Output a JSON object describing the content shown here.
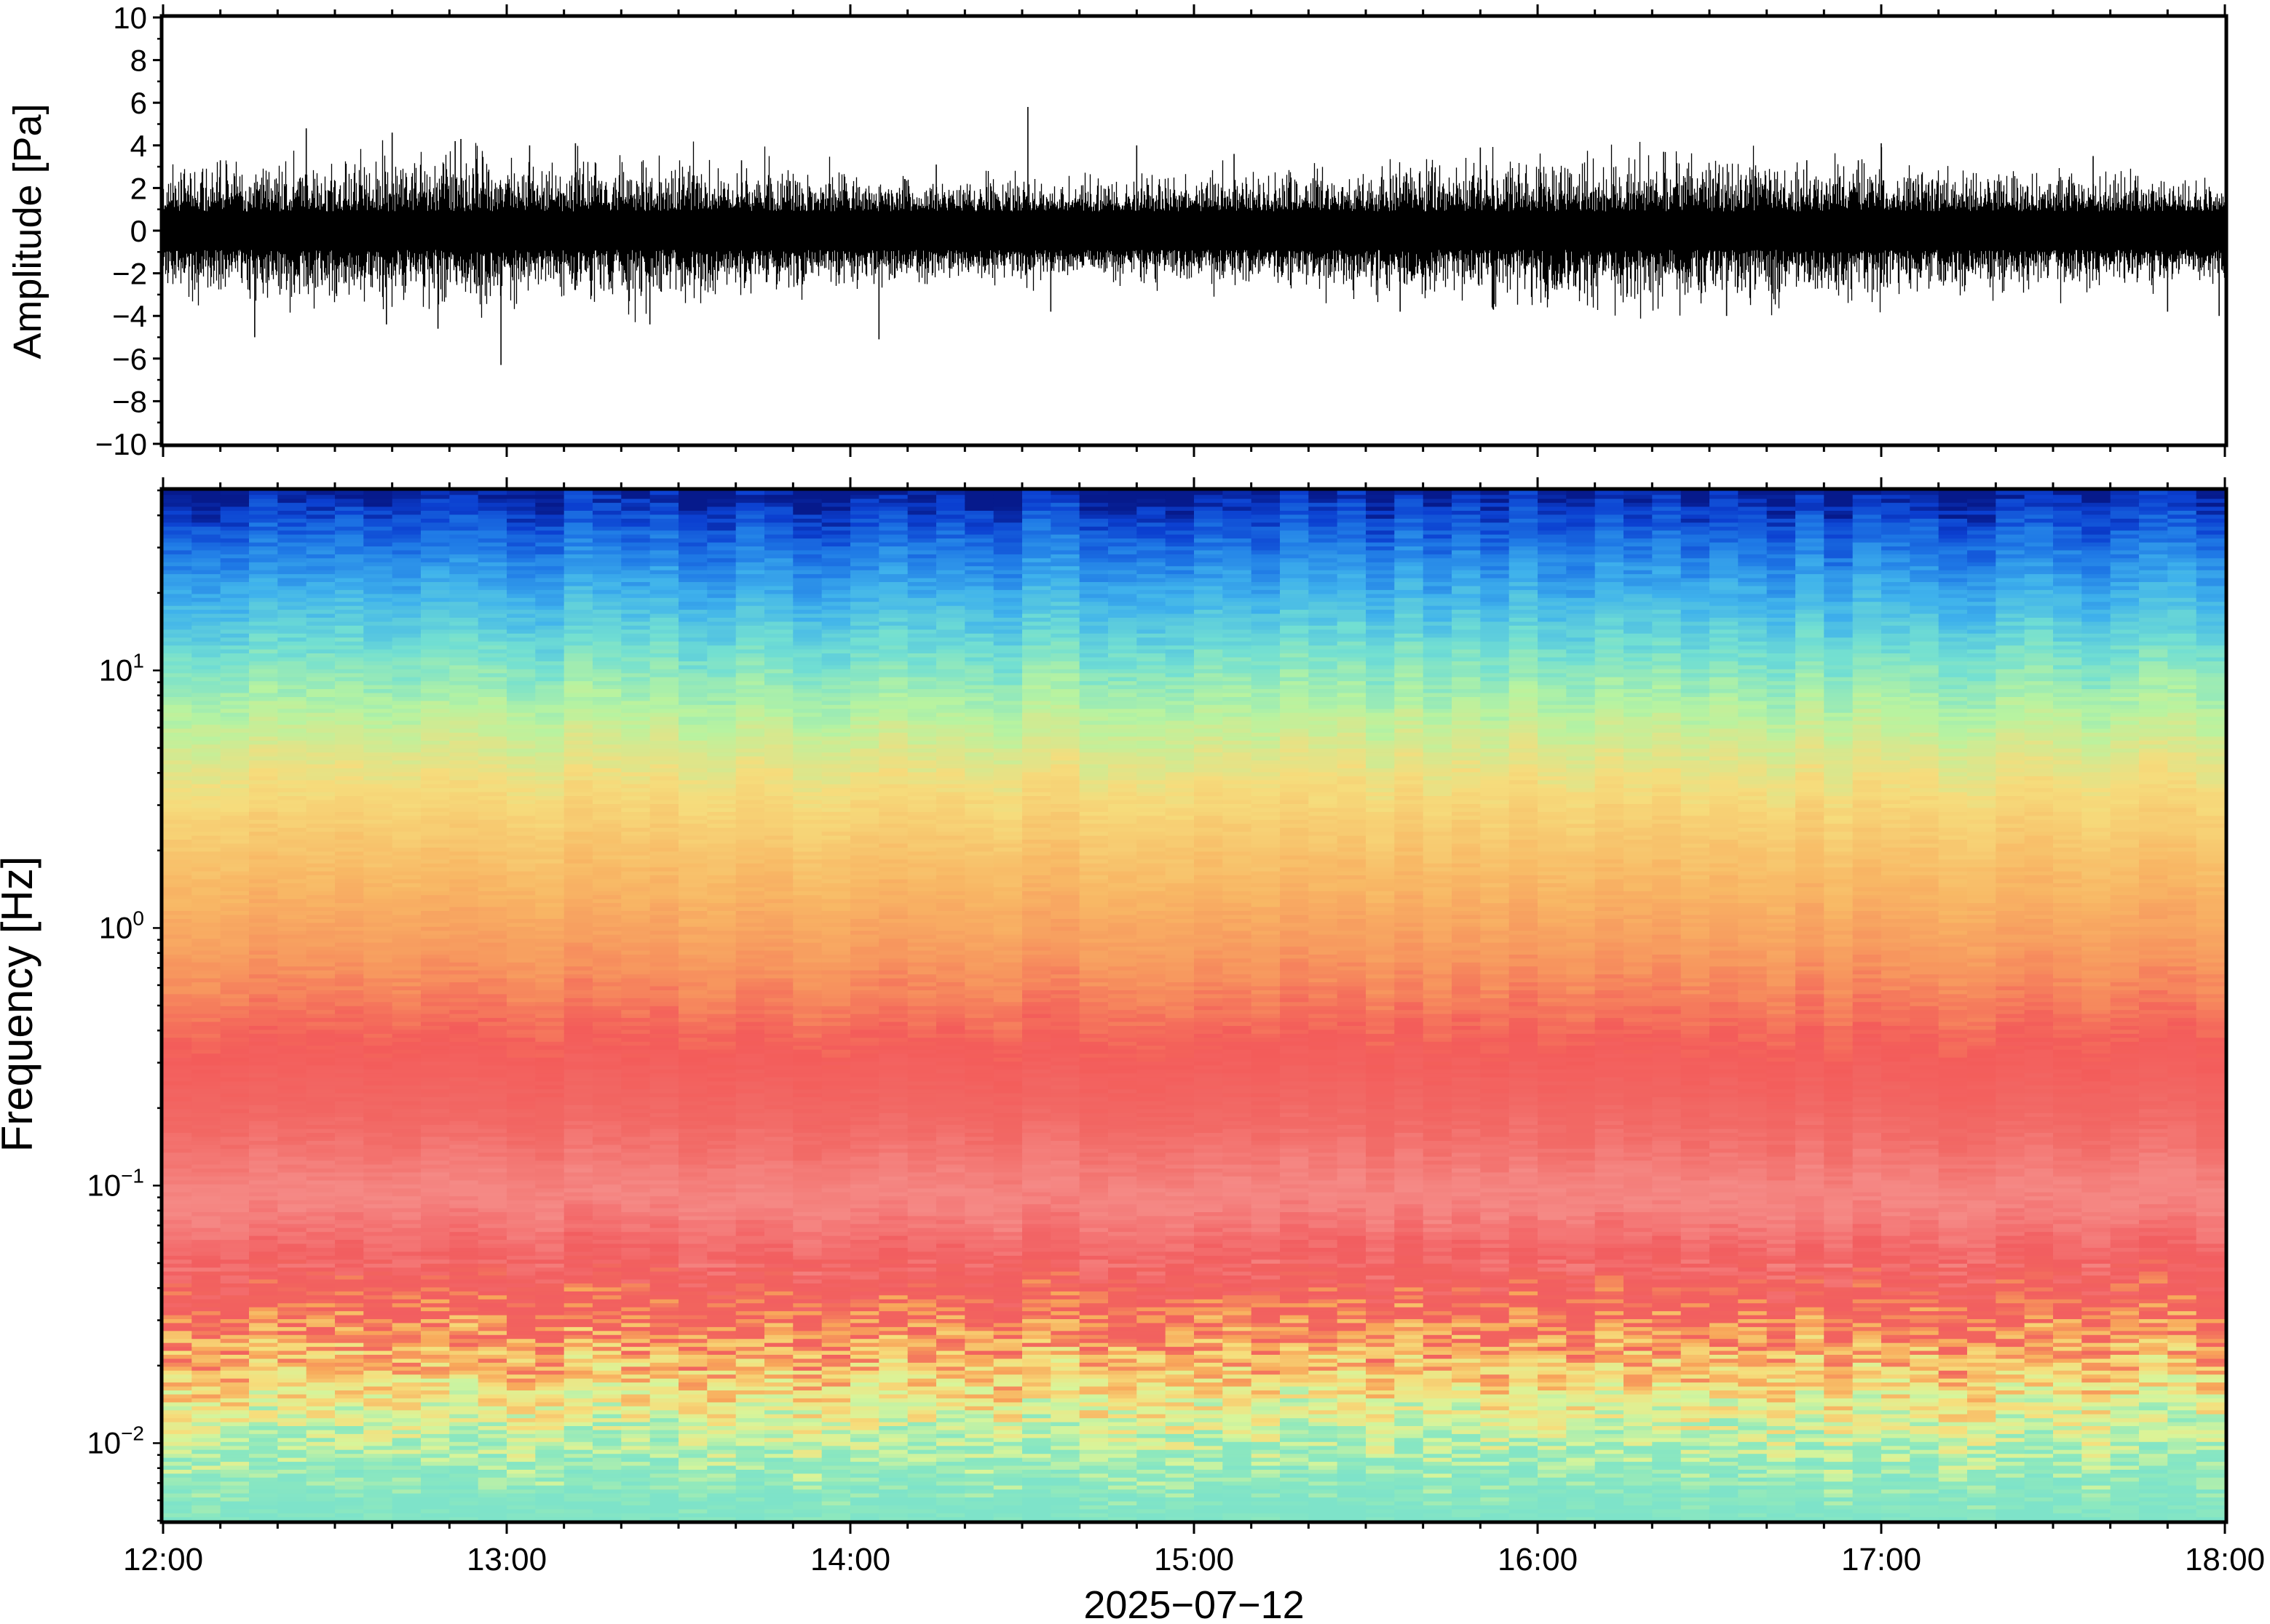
{
  "figure": {
    "colors": {
      "frame": "#000000",
      "trace": "#000000",
      "background": "#ffffff"
    }
  },
  "chart_data": [
    {
      "type": "line",
      "panel": "waveform",
      "ylabel": "Amplitude [Pa]",
      "ylim": [
        -10,
        10
      ],
      "yticks": [
        -10,
        -8,
        -6,
        -4,
        -2,
        0,
        2,
        4,
        6,
        8,
        10
      ],
      "ytick_labels": [
        "−10",
        "−8",
        "−6",
        "−4",
        "−2",
        "0",
        "2",
        "4",
        "6",
        "8",
        "10"
      ],
      "xlim": [
        "12:00",
        "18:00"
      ],
      "grid": false,
      "signal": {
        "description_values": "dense broadband noise",
        "typical_envelope_pa": [
          -2.5,
          2.5
        ],
        "spikes": [
          {
            "time": "12:10",
            "value": 3.3
          },
          {
            "time": "12:16",
            "value": -5.0
          },
          {
            "time": "12:25",
            "value": 4.8
          },
          {
            "time": "12:40",
            "value": 4.6
          },
          {
            "time": "12:48",
            "value": -4.6
          },
          {
            "time": "12:52",
            "value": 4.3
          },
          {
            "time": "12:39",
            "value": -4.4
          },
          {
            "time": "12:51",
            "value": 4.2
          },
          {
            "time": "12:59",
            "value": -6.3
          },
          {
            "time": "13:04",
            "value": 4.0
          },
          {
            "time": "13:12",
            "value": 4.1
          },
          {
            "time": "13:25",
            "value": -4.4
          },
          {
            "time": "13:41",
            "value": 3.3
          },
          {
            "time": "14:05",
            "value": -5.1
          },
          {
            "time": "14:15",
            "value": 3.1
          },
          {
            "time": "14:31",
            "value": 5.8
          },
          {
            "time": "14:35",
            "value": -3.8
          },
          {
            "time": "14:50",
            "value": 4.0
          },
          {
            "time": "15:07",
            "value": 3.6
          },
          {
            "time": "15:36",
            "value": -3.8
          },
          {
            "time": "15:50",
            "value": 3.9
          },
          {
            "time": "16:22",
            "value": 3.7
          },
          {
            "time": "16:33",
            "value": -4.0
          },
          {
            "time": "16:47",
            "value": 3.3
          },
          {
            "time": "16:56",
            "value": 3.3
          },
          {
            "time": "17:00",
            "value": 4.1
          },
          {
            "time": "17:37",
            "value": 3.5
          },
          {
            "time": "17:50",
            "value": -3.8
          },
          {
            "time": "17:59",
            "value": -4.0
          }
        ]
      }
    },
    {
      "type": "heatmap",
      "panel": "spectrogram",
      "ylabel": "Frequency [Hz]",
      "yscale": "log",
      "ylim": [
        0.005,
        50
      ],
      "yticks": [
        0.01,
        0.1,
        1,
        10
      ],
      "ytick_labels": [
        {
          "base": "10",
          "exp": "−2"
        },
        {
          "base": "10",
          "exp": "−1"
        },
        {
          "base": "10",
          "exp": "0"
        },
        {
          "base": "10",
          "exp": "1"
        }
      ],
      "xlim": [
        "12:00",
        "18:00"
      ],
      "xticks": [
        "12:00",
        "13:00",
        "14:00",
        "15:00",
        "16:00",
        "17:00",
        "18:00"
      ],
      "xlabel": "2025−07−12",
      "colormap": "rainbow (blue = low power, red/pink = high power)",
      "power_profile": [
        {
          "freq_hz": 0.005,
          "color": "#7ee3c9"
        },
        {
          "freq_hz": 0.008,
          "color": "#8de8be"
        },
        {
          "freq_hz": 0.012,
          "color": "#d8f59a"
        },
        {
          "freq_hz": 0.017,
          "color": "#f6de7c"
        },
        {
          "freq_hz": 0.024,
          "color": "#f8a75a"
        },
        {
          "freq_hz": 0.032,
          "color": "#f2645e"
        },
        {
          "freq_hz": 0.05,
          "color": "#f25e60"
        },
        {
          "freq_hz": 0.09,
          "color": "#f58a86"
        },
        {
          "freq_hz": 0.17,
          "color": "#f26a66"
        },
        {
          "freq_hz": 0.35,
          "color": "#f35c5a"
        },
        {
          "freq_hz": 0.7,
          "color": "#f7955e"
        },
        {
          "freq_hz": 1.5,
          "color": "#f8b865"
        },
        {
          "freq_hz": 3.5,
          "color": "#f6dc7c"
        },
        {
          "freq_hz": 7,
          "color": "#b8f3a0"
        },
        {
          "freq_hz": 12,
          "color": "#72dfd2"
        },
        {
          "freq_hz": 20,
          "color": "#3fb2ec"
        },
        {
          "freq_hz": 30,
          "color": "#1f7ae6"
        },
        {
          "freq_hz": 42,
          "color": "#0b3fd0"
        },
        {
          "freq_hz": 50,
          "color": "#061a8c"
        }
      ]
    }
  ]
}
